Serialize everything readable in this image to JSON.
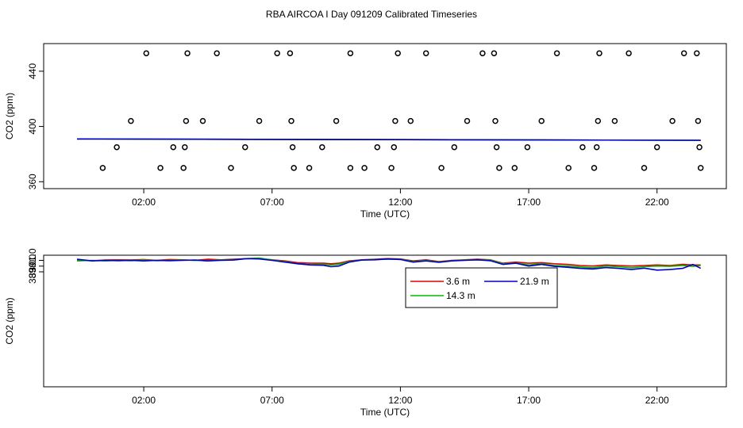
{
  "title": "RBA AIRCOA I  Day 091209  Calibrated Timeseries",
  "colors": {
    "red": "#dd0000",
    "green": "#00bb00",
    "blue": "#0000cc",
    "points": "#000000"
  },
  "chart_data": [
    {
      "type": "scatter",
      "title": "",
      "xlabel": "Time (UTC)",
      "ylabel": "CO2 (ppm)",
      "xlim": [
        -1.9,
        24.7
      ],
      "ylim": [
        355,
        460
      ],
      "x_ticks": [
        2,
        7,
        12,
        17,
        22
      ],
      "x_tick_labels": [
        "02:00",
        "07:00",
        "12:00",
        "17:00",
        "22:00"
      ],
      "y_ticks": [
        360,
        400,
        440
      ],
      "y_tick_labels": [
        "360",
        "400",
        "440"
      ],
      "grid": false,
      "legend": "none",
      "points": [
        [
          0.4,
          370
        ],
        [
          0.95,
          385
        ],
        [
          1.5,
          404
        ],
        [
          2.1,
          453
        ],
        [
          2.65,
          370
        ],
        [
          3.15,
          385
        ],
        [
          3.55,
          370
        ],
        [
          3.6,
          385
        ],
        [
          3.65,
          404
        ],
        [
          3.7,
          453
        ],
        [
          4.3,
          404
        ],
        [
          4.85,
          453
        ],
        [
          5.4,
          370
        ],
        [
          5.95,
          385
        ],
        [
          6.5,
          404
        ],
        [
          7.2,
          453
        ],
        [
          7.7,
          453
        ],
        [
          7.75,
          404
        ],
        [
          7.8,
          385
        ],
        [
          7.85,
          370
        ],
        [
          8.45,
          370
        ],
        [
          8.95,
          385
        ],
        [
          9.5,
          404
        ],
        [
          10.05,
          370
        ],
        [
          10.05,
          453
        ],
        [
          10.6,
          370
        ],
        [
          11.1,
          385
        ],
        [
          11.65,
          370
        ],
        [
          11.75,
          385
        ],
        [
          11.8,
          404
        ],
        [
          11.9,
          453
        ],
        [
          12.4,
          404
        ],
        [
          13.0,
          453
        ],
        [
          13.6,
          370
        ],
        [
          14.1,
          385
        ],
        [
          14.6,
          404
        ],
        [
          15.2,
          453
        ],
        [
          15.65,
          453
        ],
        [
          15.7,
          404
        ],
        [
          15.75,
          385
        ],
        [
          15.85,
          370
        ],
        [
          16.45,
          370
        ],
        [
          16.95,
          385
        ],
        [
          17.5,
          404
        ],
        [
          18.1,
          453
        ],
        [
          18.55,
          370
        ],
        [
          19.1,
          385
        ],
        [
          19.55,
          370
        ],
        [
          19.65,
          385
        ],
        [
          19.7,
          404
        ],
        [
          19.75,
          453
        ],
        [
          20.35,
          404
        ],
        [
          20.9,
          453
        ],
        [
          21.5,
          370
        ],
        [
          22.0,
          385
        ],
        [
          22.6,
          404
        ],
        [
          23.05,
          453
        ],
        [
          23.55,
          453
        ],
        [
          23.6,
          404
        ],
        [
          23.65,
          385
        ],
        [
          23.7,
          370
        ]
      ],
      "series": [
        {
          "color": "#dd0000",
          "x": [
            -0.6,
            23.7
          ],
          "values": [
            391.0,
            390.0
          ]
        },
        {
          "color": "#00bb00",
          "x": [
            -0.6,
            23.7
          ],
          "values": [
            391.0,
            390.0
          ]
        },
        {
          "color": "#0000cc",
          "x": [
            -0.6,
            23.7
          ],
          "values": [
            391.0,
            390.0
          ]
        }
      ]
    },
    {
      "type": "line",
      "title": "",
      "xlabel": "Time (UTC)",
      "ylabel": "CO2 (ppm)",
      "xlim": [
        -1.9,
        24.7
      ],
      "ylim": [
        368.95,
        391.9
      ],
      "x_ticks": [
        2,
        7,
        12,
        17,
        22
      ],
      "x_tick_labels": [
        "02:00",
        "07:00",
        "12:00",
        "17:00",
        "22:00"
      ],
      "y_ticks": [
        389.0,
        390.0,
        391.0
      ],
      "y_tick_labels": [
        "389.0",
        "390.0",
        "391.0"
      ],
      "grid": false,
      "legend": "top-center",
      "legend_entries": [
        {
          "label": "3.6 m",
          "color": "#dd0000"
        },
        {
          "label": "21.9 m",
          "color": "#0000cc"
        },
        {
          "label": "14.3 m",
          "color": "#00bb00"
        }
      ],
      "x": [
        -0.6,
        0.0,
        0.5,
        1.0,
        1.5,
        2.0,
        2.5,
        3.0,
        3.5,
        4.0,
        4.5,
        5.0,
        5.5,
        6.0,
        6.5,
        7.0,
        7.5,
        8.0,
        8.5,
        9.0,
        9.3,
        9.6,
        10.0,
        10.5,
        11.0,
        11.5,
        12.0,
        12.5,
        13.0,
        13.5,
        14.0,
        14.5,
        15.0,
        15.5,
        16.0,
        16.5,
        17.0,
        17.5,
        18.0,
        18.5,
        19.0,
        19.5,
        20.0,
        20.5,
        21.0,
        21.5,
        22.0,
        22.5,
        23.0,
        23.4,
        23.7
      ],
      "series": [
        {
          "label": "3.6 m",
          "color": "#dd0000",
          "values": [
            391.0,
            390.95,
            391.05,
            391.1,
            391.05,
            391.15,
            391.0,
            391.15,
            391.1,
            391.0,
            391.2,
            391.1,
            391.2,
            391.3,
            391.35,
            391.1,
            390.9,
            390.6,
            390.5,
            390.5,
            390.4,
            390.5,
            390.9,
            391.1,
            391.2,
            391.3,
            391.25,
            390.9,
            391.1,
            390.8,
            391.0,
            391.1,
            391.2,
            391.1,
            390.5,
            390.7,
            390.5,
            390.6,
            390.4,
            390.3,
            390.1,
            390.0,
            390.2,
            390.1,
            390.0,
            390.1,
            390.2,
            390.1,
            390.3,
            390.2,
            390.2
          ]
        },
        {
          "label": "14.3 m",
          "color": "#00bb00",
          "values": [
            390.9,
            391.0,
            390.9,
            391.0,
            390.95,
            391.05,
            390.95,
            391.0,
            391.05,
            391.0,
            390.95,
            391.05,
            391.1,
            391.3,
            391.4,
            391.05,
            390.8,
            390.4,
            390.25,
            390.3,
            390.2,
            390.3,
            390.8,
            391.05,
            391.15,
            391.2,
            391.2,
            390.8,
            391.0,
            390.7,
            390.95,
            391.05,
            391.1,
            391.05,
            390.4,
            390.55,
            390.2,
            390.4,
            390.1,
            390.0,
            389.85,
            389.7,
            390.0,
            389.9,
            389.7,
            389.9,
            390.0,
            389.95,
            390.1,
            389.95,
            390.1
          ]
        },
        {
          "label": "21.9 m",
          "color": "#0000cc",
          "values": [
            391.2,
            390.9,
            391.0,
            390.95,
            391.0,
            390.9,
            391.0,
            390.95,
            391.0,
            391.05,
            390.9,
            391.0,
            391.05,
            391.3,
            391.25,
            391.0,
            390.7,
            390.4,
            390.2,
            390.15,
            389.9,
            390.0,
            390.7,
            391.05,
            391.1,
            391.25,
            391.15,
            390.7,
            390.9,
            390.65,
            390.9,
            391.0,
            391.1,
            390.95,
            390.3,
            390.5,
            390.0,
            390.3,
            389.95,
            389.8,
            389.6,
            389.5,
            389.75,
            389.6,
            389.4,
            389.65,
            389.3,
            389.4,
            389.6,
            390.3,
            389.6
          ]
        }
      ]
    }
  ]
}
